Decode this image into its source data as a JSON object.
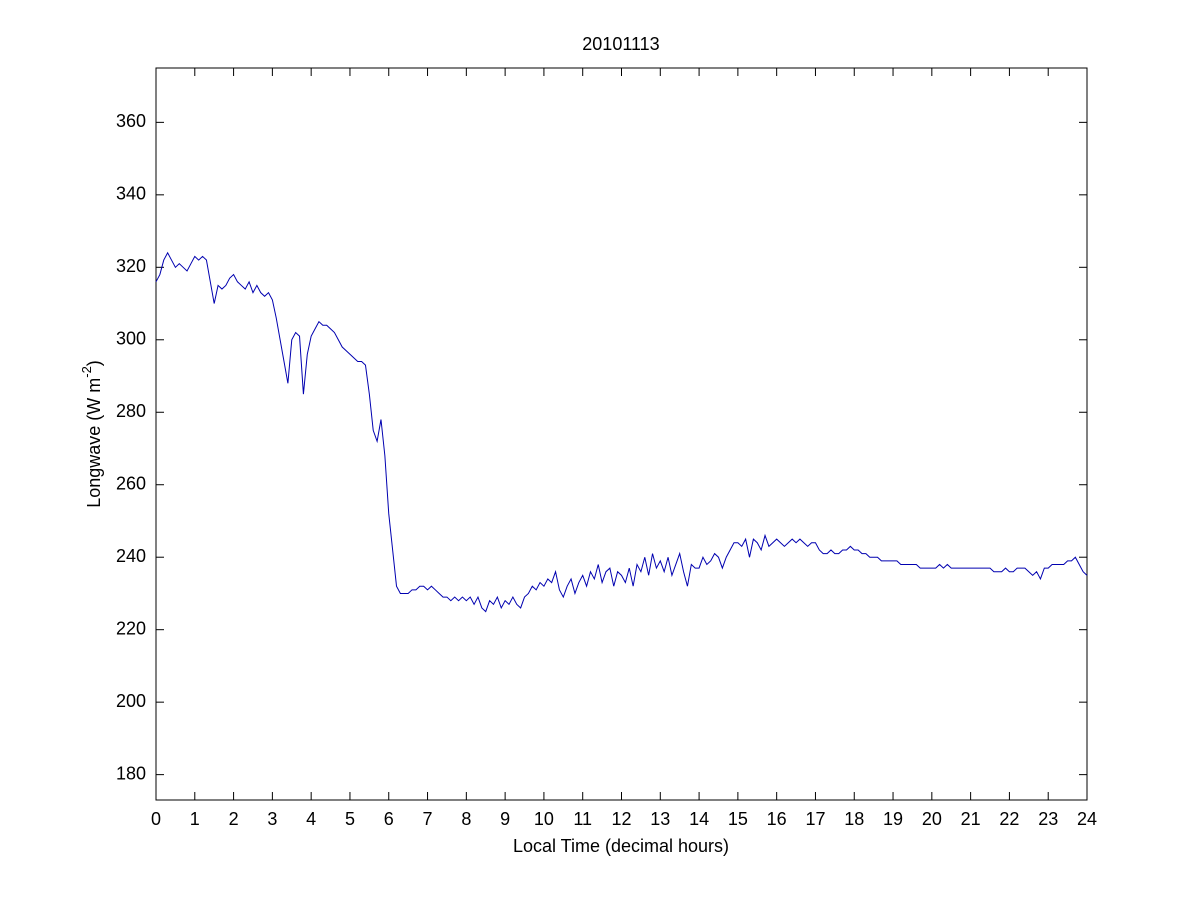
{
  "chart_data": {
    "type": "line",
    "title": "20101113",
    "xlabel": "Local Time (decimal hours)",
    "ylabel": {
      "text": "Longwave (W m",
      "sup": "-2",
      "end": ")"
    },
    "color": "#0000b0",
    "xlim": [
      0,
      24
    ],
    "xticks": [
      0,
      1,
      2,
      3,
      4,
      5,
      6,
      7,
      8,
      9,
      10,
      11,
      12,
      13,
      14,
      15,
      16,
      17,
      18,
      19,
      20,
      21,
      22,
      23,
      24
    ],
    "ylim": [
      173,
      375
    ],
    "yticks": [
      180,
      200,
      220,
      240,
      260,
      280,
      300,
      320,
      340,
      360
    ],
    "x": [
      0,
      0.1,
      0.2,
      0.3,
      0.4,
      0.5,
      0.6,
      0.7,
      0.8,
      0.9,
      1,
      1.1,
      1.2,
      1.3,
      1.4,
      1.5,
      1.6,
      1.7,
      1.8,
      1.9,
      2,
      2.1,
      2.2,
      2.3,
      2.4,
      2.5,
      2.6,
      2.7,
      2.8,
      2.9,
      3,
      3.1,
      3.2,
      3.3,
      3.4,
      3.5,
      3.6,
      3.7,
      3.8,
      3.9,
      4,
      4.1,
      4.2,
      4.3,
      4.4,
      4.5,
      4.6,
      4.7,
      4.8,
      4.9,
      5,
      5.1,
      5.2,
      5.3,
      5.4,
      5.5,
      5.6,
      5.7,
      5.8,
      5.9,
      6,
      6.1,
      6.2,
      6.3,
      6.4,
      6.5,
      6.6,
      6.7,
      6.8,
      6.9,
      7,
      7.1,
      7.2,
      7.3,
      7.4,
      7.5,
      7.6,
      7.7,
      7.8,
      7.9,
      8,
      8.1,
      8.2,
      8.3,
      8.4,
      8.5,
      8.6,
      8.7,
      8.8,
      8.9,
      9,
      9.1,
      9.2,
      9.3,
      9.4,
      9.5,
      9.6,
      9.7,
      9.8,
      9.9,
      10,
      10.1,
      10.2,
      10.3,
      10.4,
      10.5,
      10.6,
      10.7,
      10.8,
      10.9,
      11,
      11.1,
      11.2,
      11.3,
      11.4,
      11.5,
      11.6,
      11.7,
      11.8,
      11.9,
      12,
      12.1,
      12.2,
      12.3,
      12.4,
      12.5,
      12.6,
      12.7,
      12.8,
      12.9,
      13,
      13.1,
      13.2,
      13.3,
      13.4,
      13.5,
      13.6,
      13.7,
      13.8,
      13.9,
      14,
      14.1,
      14.2,
      14.3,
      14.4,
      14.5,
      14.6,
      14.7,
      14.8,
      14.9,
      15,
      15.1,
      15.2,
      15.3,
      15.4,
      15.5,
      15.6,
      15.7,
      15.8,
      15.9,
      16,
      16.1,
      16.2,
      16.3,
      16.4,
      16.5,
      16.6,
      16.7,
      16.8,
      16.9,
      17,
      17.1,
      17.2,
      17.3,
      17.4,
      17.5,
      17.6,
      17.7,
      17.8,
      17.9,
      18,
      18.1,
      18.2,
      18.3,
      18.4,
      18.5,
      18.6,
      18.7,
      18.8,
      18.9,
      19,
      19.1,
      19.2,
      19.3,
      19.4,
      19.5,
      19.6,
      19.7,
      19.8,
      19.9,
      20,
      20.1,
      20.2,
      20.3,
      20.4,
      20.5,
      20.6,
      20.7,
      20.8,
      20.9,
      21,
      21.1,
      21.2,
      21.3,
      21.4,
      21.5,
      21.6,
      21.7,
      21.8,
      21.9,
      22,
      22.1,
      22.2,
      22.3,
      22.4,
      22.5,
      22.6,
      22.7,
      22.8,
      22.9,
      23,
      23.1,
      23.2,
      23.3,
      23.4,
      23.5,
      23.6,
      23.7,
      23.8,
      23.9,
      24
    ],
    "values": [
      316,
      318,
      322,
      324,
      322,
      320,
      321,
      320,
      319,
      321,
      323,
      322,
      323,
      322,
      316,
      310,
      315,
      314,
      315,
      317,
      318,
      316,
      315,
      314,
      316,
      313,
      315,
      313,
      312,
      313,
      311,
      306,
      300,
      294,
      288,
      300,
      302,
      301,
      285,
      296,
      301,
      303,
      305,
      304,
      304,
      303,
      302,
      300,
      298,
      297,
      296,
      295,
      294,
      294,
      293,
      285,
      275,
      272,
      278,
      268,
      252,
      242,
      232,
      230,
      230,
      230,
      231,
      231,
      232,
      232,
      231,
      232,
      231,
      230,
      229,
      229,
      228,
      229,
      228,
      229,
      228,
      229,
      227,
      229,
      226,
      225,
      228,
      227,
      229,
      226,
      228,
      227,
      229,
      227,
      226,
      229,
      230,
      232,
      231,
      233,
      232,
      234,
      233,
      236,
      231,
      229,
      232,
      234,
      230,
      233,
      235,
      232,
      236,
      234,
      238,
      233,
      236,
      237,
      232,
      236,
      235,
      233,
      237,
      232,
      238,
      236,
      240,
      235,
      241,
      237,
      239,
      236,
      240,
      235,
      238,
      241,
      236,
      232,
      238,
      237,
      237,
      240,
      238,
      239,
      241,
      240,
      237,
      240,
      242,
      244,
      244,
      243,
      245,
      240,
      245,
      244,
      242,
      246,
      243,
      244,
      245,
      244,
      243,
      244,
      245,
      244,
      245,
      244,
      243,
      244,
      244,
      242,
      241,
      241,
      242,
      241,
      241,
      242,
      242,
      243,
      242,
      242,
      241,
      241,
      240,
      240,
      240,
      239,
      239,
      239,
      239,
      239,
      238,
      238,
      238,
      238,
      238,
      237,
      237,
      237,
      237,
      237,
      238,
      237,
      238,
      237,
      237,
      237,
      237,
      237,
      237,
      237,
      237,
      237,
      237,
      237,
      236,
      236,
      236,
      237,
      236,
      236,
      237,
      237,
      237,
      236,
      235,
      236,
      234,
      237,
      237,
      238,
      238,
      238,
      238,
      239,
      239,
      240,
      238,
      236,
      235
    ]
  }
}
